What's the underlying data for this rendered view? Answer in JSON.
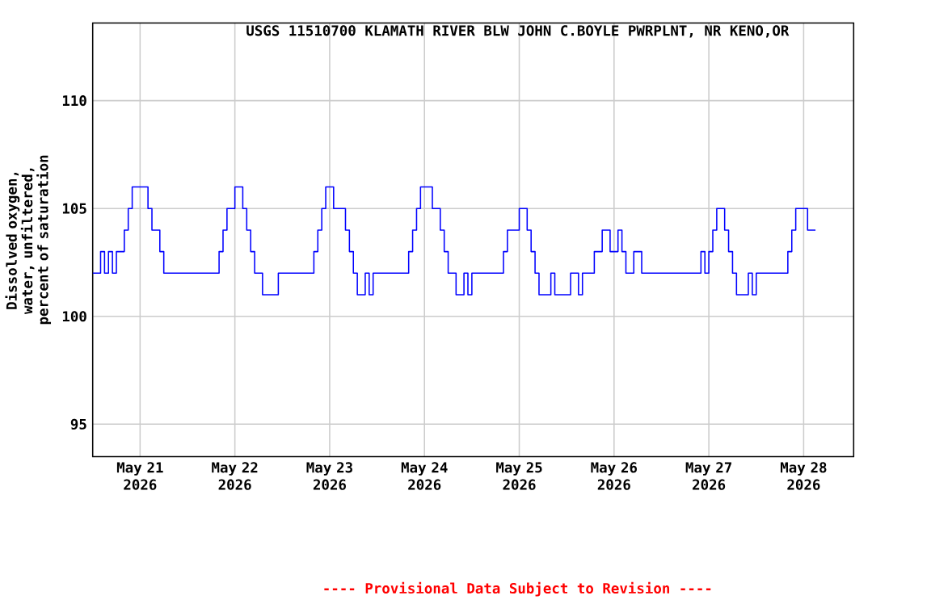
{
  "chart_data": {
    "type": "step",
    "title": "USGS 11510700 KLAMATH RIVER BLW JOHN C.BOYLE PWRPLNT, NR KENO,OR",
    "ylabel": "Dissolved oxygen, water, unfiltered, percent of saturation",
    "annotations": [
      "---- Provisional Data Subject to Revision ----"
    ],
    "x": [
      "2026-05-20T12:00",
      "2026-05-20T14:00",
      "2026-05-20T15:00",
      "2026-05-20T16:00",
      "2026-05-20T17:00",
      "2026-05-20T18:00",
      "2026-05-20T20:00",
      "2026-05-20T21:00",
      "2026-05-20T22:00",
      "2026-05-21T02:00",
      "2026-05-21T03:00",
      "2026-05-21T05:00",
      "2026-05-21T06:00",
      "2026-05-21T20:00",
      "2026-05-21T21:00",
      "2026-05-21T22:00",
      "2026-05-22T00:00",
      "2026-05-22T02:00",
      "2026-05-22T03:00",
      "2026-05-22T04:00",
      "2026-05-22T05:00",
      "2026-05-22T07:00",
      "2026-05-22T11:00",
      "2026-05-22T20:00",
      "2026-05-22T21:00",
      "2026-05-22T22:00",
      "2026-05-22T23:00",
      "2026-05-23T01:00",
      "2026-05-23T04:00",
      "2026-05-23T05:00",
      "2026-05-23T06:00",
      "2026-05-23T07:00",
      "2026-05-23T09:00",
      "2026-05-23T10:00",
      "2026-05-23T11:00",
      "2026-05-23T20:00",
      "2026-05-23T21:00",
      "2026-05-23T22:00",
      "2026-05-23T23:00",
      "2026-05-24T02:00",
      "2026-05-24T04:00",
      "2026-05-24T05:00",
      "2026-05-24T06:00",
      "2026-05-24T08:00",
      "2026-05-24T10:00",
      "2026-05-24T11:00",
      "2026-05-24T12:00",
      "2026-05-24T20:00",
      "2026-05-24T21:00",
      "2026-05-25T00:00",
      "2026-05-25T02:00",
      "2026-05-25T03:00",
      "2026-05-25T04:00",
      "2026-05-25T05:00",
      "2026-05-25T08:00",
      "2026-05-25T09:00",
      "2026-05-25T13:00",
      "2026-05-25T15:00",
      "2026-05-25T16:00",
      "2026-05-25T19:00",
      "2026-05-25T21:00",
      "2026-05-25T23:00",
      "2026-05-26T01:00",
      "2026-05-26T02:00",
      "2026-05-26T03:00",
      "2026-05-26T05:00",
      "2026-05-26T07:00",
      "2026-05-26T22:00",
      "2026-05-26T23:00",
      "2026-05-27T00:00",
      "2026-05-27T01:00",
      "2026-05-27T02:00",
      "2026-05-27T04:00",
      "2026-05-27T05:00",
      "2026-05-27T06:00",
      "2026-05-27T07:00",
      "2026-05-27T10:00",
      "2026-05-27T11:00",
      "2026-05-27T12:00",
      "2026-05-27T20:00",
      "2026-05-27T21:00",
      "2026-05-27T22:00",
      "2026-05-28T01:00",
      "2026-05-28T03:00"
    ],
    "values": [
      102,
      103,
      102,
      103,
      102,
      103,
      104,
      105,
      106,
      105,
      104,
      103,
      102,
      103,
      104,
      105,
      106,
      105,
      104,
      103,
      102,
      101,
      102,
      103,
      104,
      105,
      106,
      105,
      104,
      103,
      102,
      101,
      102,
      101,
      102,
      103,
      104,
      105,
      106,
      105,
      104,
      103,
      102,
      101,
      102,
      101,
      102,
      103,
      104,
      105,
      104,
      103,
      102,
      101,
      102,
      101,
      102,
      101,
      102,
      103,
      104,
      103,
      104,
      103,
      102,
      103,
      102,
      103,
      102,
      103,
      104,
      105,
      104,
      103,
      102,
      101,
      102,
      101,
      102,
      103,
      104,
      105,
      104,
      104
    ],
    "color": "#0000ff",
    "xlim": [
      "2026-05-20T12:00",
      "2026-05-28T12:40"
    ],
    "xticks": [
      {
        "value": "2026-05-21",
        "label": "May 21 2026"
      },
      {
        "value": "2026-05-22",
        "label": "May 22 2026"
      },
      {
        "value": "2026-05-23",
        "label": "May 23 2026"
      },
      {
        "value": "2026-05-24",
        "label": "May 24 2026"
      },
      {
        "value": "2026-05-25",
        "label": "May 25 2026"
      },
      {
        "value": "2026-05-26",
        "label": "May 26 2026"
      },
      {
        "value": "2026-05-27",
        "label": "May 27 2026"
      },
      {
        "value": "2026-05-28",
        "label": "May 28 2026"
      }
    ],
    "ylim": [
      93.5,
      113.6
    ],
    "yticks": [
      95,
      100,
      105,
      110
    ],
    "grid": true,
    "line_style": "solid",
    "marker": "none"
  }
}
